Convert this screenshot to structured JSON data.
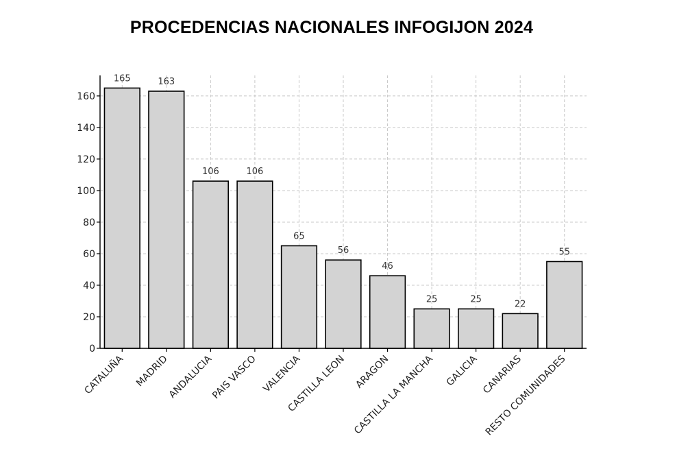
{
  "chart_data": {
    "type": "bar",
    "title": "PROCEDENCIAS NACIONALES INFOGIJON 2024",
    "categories": [
      "CATALUÑA",
      "MADRID",
      "ANDALUCIA",
      "PAIS VASCO",
      "VALENCIA",
      "CASTILLA LEON",
      "ARAGON",
      "CASTILLA LA MANCHA",
      "GALICIA",
      "CANARIAS",
      "RESTO COMUNIDADES"
    ],
    "values": [
      165,
      163,
      106,
      106,
      65,
      56,
      46,
      25,
      25,
      22,
      55
    ],
    "data_labels": [
      "165",
      "163",
      "106",
      "106",
      "65",
      "56",
      "46",
      "25",
      "25",
      "22",
      "55"
    ],
    "y_ticks": [
      0,
      20,
      40,
      60,
      80,
      100,
      120,
      140,
      160
    ],
    "y_tick_labels": [
      "0",
      "20",
      "40",
      "60",
      "80",
      "100",
      "120",
      "140",
      "160"
    ],
    "xlabel": "",
    "ylabel": "",
    "ylim": [
      0,
      173
    ],
    "grid": true,
    "legend": "none",
    "bar_color": "#d3d3d3",
    "bar_edge_color": "#000000",
    "grid_color": "#c8c8c8"
  }
}
